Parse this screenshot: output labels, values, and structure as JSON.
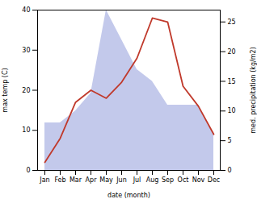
{
  "chart_data": {
    "type": "line",
    "categories": [
      "Jan",
      "Feb",
      "Mar",
      "Apr",
      "May",
      "Jun",
      "Jul",
      "Aug",
      "Sep",
      "Oct",
      "Nov",
      "Dec"
    ],
    "xlabel": "date (month)",
    "ylabel": "max temp (C)",
    "y2label": "med. precipitation (kg/m2)",
    "ylim": [
      0,
      40
    ],
    "yticks": [
      0,
      10,
      20,
      30,
      40
    ],
    "y2lim": [
      0,
      27
    ],
    "y2ticks": [
      0,
      5,
      10,
      15,
      20,
      25
    ],
    "series": [
      {
        "type": "area",
        "axis": "y2",
        "color": "#b8bfe8",
        "values": [
          8,
          8,
          10,
          13,
          27,
          22,
          17,
          15,
          11,
          11,
          11,
          6
        ]
      },
      {
        "type": "line",
        "color": "#c0392b",
        "values": [
          2,
          8,
          17,
          20,
          18,
          22,
          28,
          38,
          37,
          21,
          16,
          9
        ]
      }
    ]
  }
}
